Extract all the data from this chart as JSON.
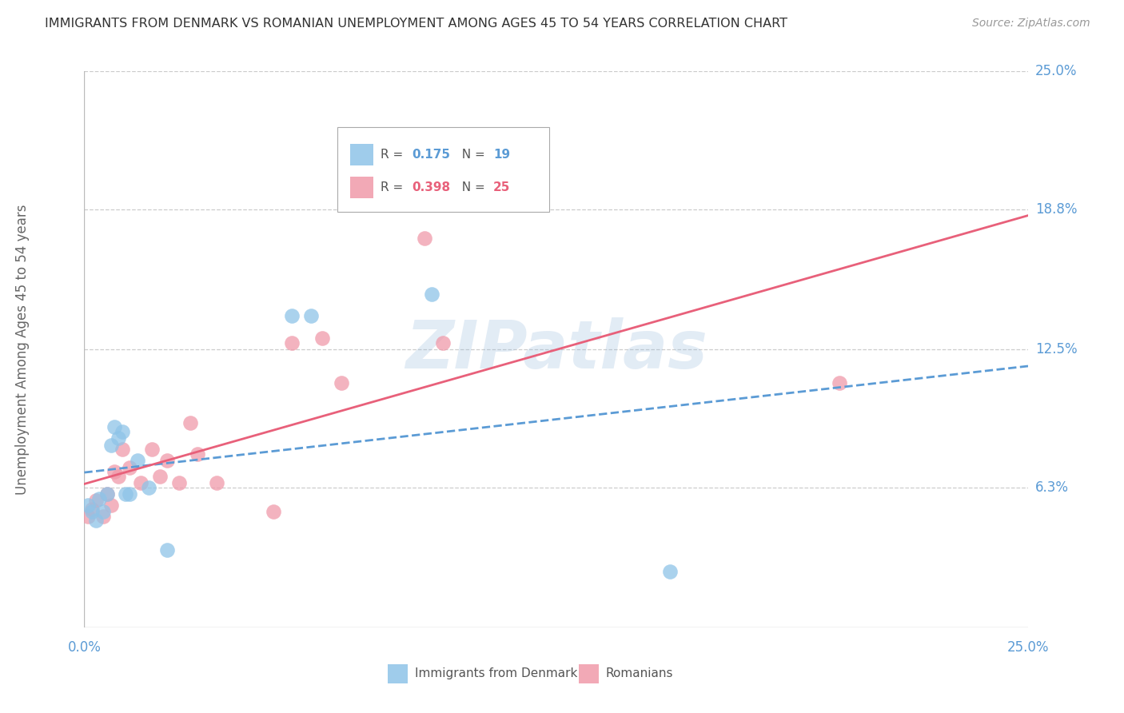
{
  "title": "IMMIGRANTS FROM DENMARK VS ROMANIAN UNEMPLOYMENT AMONG AGES 45 TO 54 YEARS CORRELATION CHART",
  "source": "Source: ZipAtlas.com",
  "ylabel": "Unemployment Among Ages 45 to 54 years",
  "ytick_values": [
    0.063,
    0.125,
    0.188,
    0.25
  ],
  "ytick_labels": [
    "6.3%",
    "12.5%",
    "18.8%",
    "25.0%"
  ],
  "xmin": 0.0,
  "xmax": 0.25,
  "ymin": 0.0,
  "ymax": 0.25,
  "denmark_color": "#8ec4e8",
  "romanian_color": "#f09aaa",
  "denmark_line_color": "#5b9bd5",
  "romanian_line_color": "#e8607a",
  "denmark_R": "0.175",
  "denmark_N": "19",
  "romanian_R": "0.398",
  "romanian_N": "25",
  "legend_label_denmark": "Immigrants from Denmark",
  "legend_label_romanians": "Romanians",
  "watermark": "ZIPatlas",
  "denmark_x": [
    0.001,
    0.002,
    0.003,
    0.004,
    0.005,
    0.006,
    0.007,
    0.008,
    0.009,
    0.01,
    0.011,
    0.012,
    0.014,
    0.017,
    0.022,
    0.055,
    0.06,
    0.092,
    0.155
  ],
  "denmark_y": [
    0.055,
    0.052,
    0.048,
    0.058,
    0.052,
    0.06,
    0.082,
    0.09,
    0.085,
    0.088,
    0.06,
    0.06,
    0.075,
    0.063,
    0.035,
    0.14,
    0.14,
    0.15,
    0.025
  ],
  "romanian_x": [
    0.001,
    0.002,
    0.003,
    0.005,
    0.006,
    0.007,
    0.008,
    0.009,
    0.01,
    0.012,
    0.015,
    0.018,
    0.02,
    0.022,
    0.025,
    0.028,
    0.03,
    0.035,
    0.05,
    0.055,
    0.063,
    0.068,
    0.09,
    0.095,
    0.2
  ],
  "romanian_y": [
    0.05,
    0.053,
    0.057,
    0.05,
    0.06,
    0.055,
    0.07,
    0.068,
    0.08,
    0.072,
    0.065,
    0.08,
    0.068,
    0.075,
    0.065,
    0.092,
    0.078,
    0.065,
    0.052,
    0.128,
    0.13,
    0.11,
    0.175,
    0.128,
    0.11
  ],
  "background_color": "#ffffff",
  "grid_color": "#cccccc",
  "title_color": "#333333",
  "axis_label_color": "#666666",
  "tick_label_color": "#5b9bd5"
}
